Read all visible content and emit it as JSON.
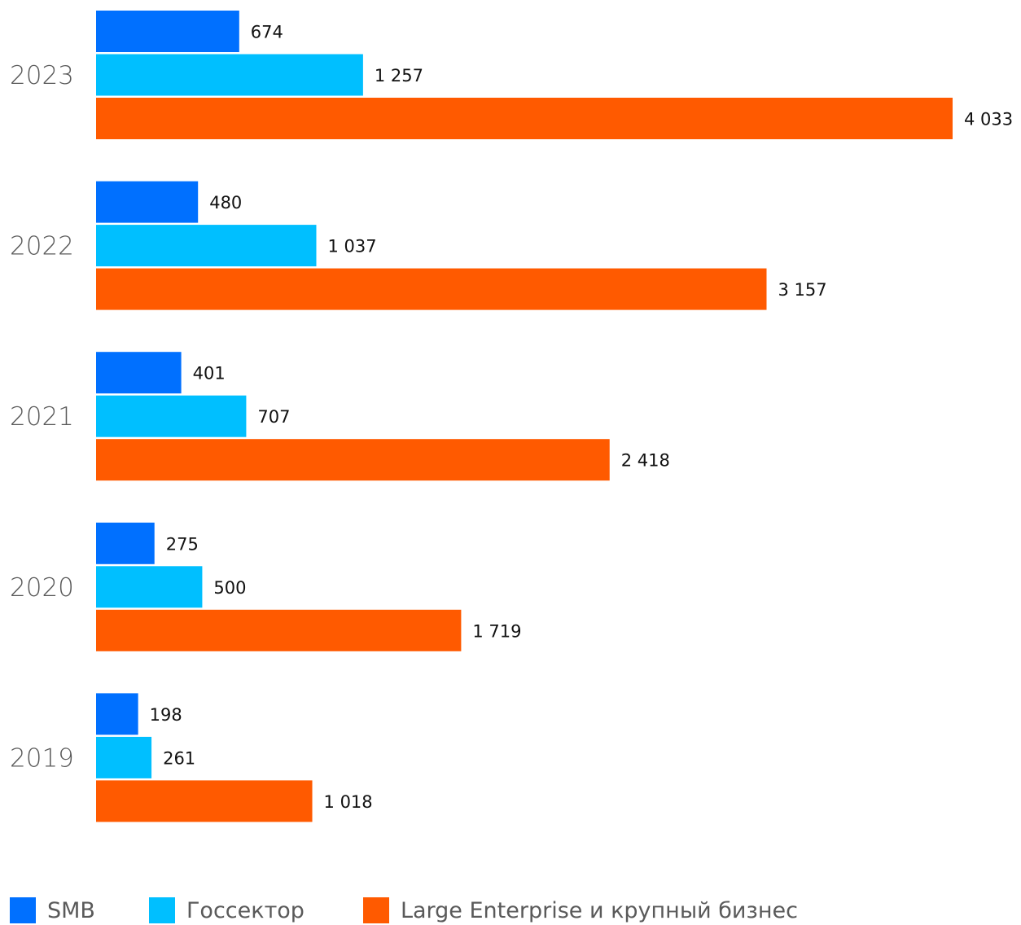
{
  "chart_data": {
    "type": "bar",
    "orientation": "horizontal",
    "categories": [
      "2023",
      "2022",
      "2021",
      "2020",
      "2019"
    ],
    "series": [
      {
        "name": "SMB",
        "color": "#0070ff",
        "values": [
          674,
          480,
          401,
          275,
          198
        ],
        "labels": [
          "674",
          "480",
          "401",
          "275",
          "198"
        ]
      },
      {
        "name": "Госсектор",
        "color": "#00bfff",
        "values": [
          1257,
          1037,
          707,
          500,
          261
        ],
        "labels": [
          "1 257",
          "1 037",
          "707",
          "500",
          "261"
        ]
      },
      {
        "name": "Large Enterprise и крупный бизнес",
        "color": "#ff5a00",
        "values": [
          4033,
          3157,
          2418,
          1719,
          1018
        ],
        "labels": [
          "4 033",
          "3 157",
          "2 418",
          "1 719",
          "1 018"
        ]
      }
    ],
    "xlim": [
      0,
      4033
    ],
    "grid": false,
    "legend": "bottom-left"
  }
}
